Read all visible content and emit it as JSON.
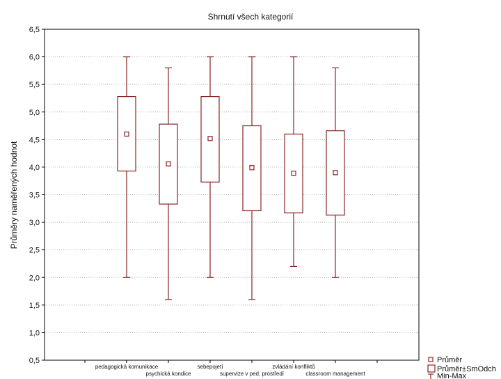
{
  "chart_data": {
    "type": "box",
    "title": "Shrnutí všech kategorií",
    "xlabel": "",
    "ylabel": "Průměry naměřených hodnot",
    "ylim": [
      0.5,
      6.5
    ],
    "y_ticks": [
      "0,5",
      "1,0",
      "1,5",
      "2,0",
      "2,5",
      "3,0",
      "3,5",
      "4,0",
      "4,5",
      "5,0",
      "5,5",
      "6,0",
      "6,5"
    ],
    "grid": true,
    "legend_position": "bottom-right",
    "color": "#8b2323",
    "categories": [
      "pedagogická komunikace",
      "psychická kondice",
      "sebepojetí",
      "supervize v ped. prostředí",
      "zvládání konfliktů",
      "classroom management"
    ],
    "series": [
      {
        "mean": 4.6,
        "box_low": 3.93,
        "box_high": 5.28,
        "min": 2.0,
        "max": 6.0
      },
      {
        "mean": 4.06,
        "box_low": 3.33,
        "box_high": 4.78,
        "min": 1.6,
        "max": 5.8
      },
      {
        "mean": 4.52,
        "box_low": 3.73,
        "box_high": 5.28,
        "min": 2.0,
        "max": 6.0
      },
      {
        "mean": 3.99,
        "box_low": 3.21,
        "box_high": 4.75,
        "min": 1.6,
        "max": 6.0
      },
      {
        "mean": 3.89,
        "box_low": 3.17,
        "box_high": 4.6,
        "min": 2.2,
        "max": 6.0
      },
      {
        "mean": 3.9,
        "box_low": 3.13,
        "box_high": 4.66,
        "min": 2.0,
        "max": 5.8
      }
    ],
    "legend": [
      "Průměr",
      "Průměr±SmOdch",
      "Min-Max"
    ]
  }
}
